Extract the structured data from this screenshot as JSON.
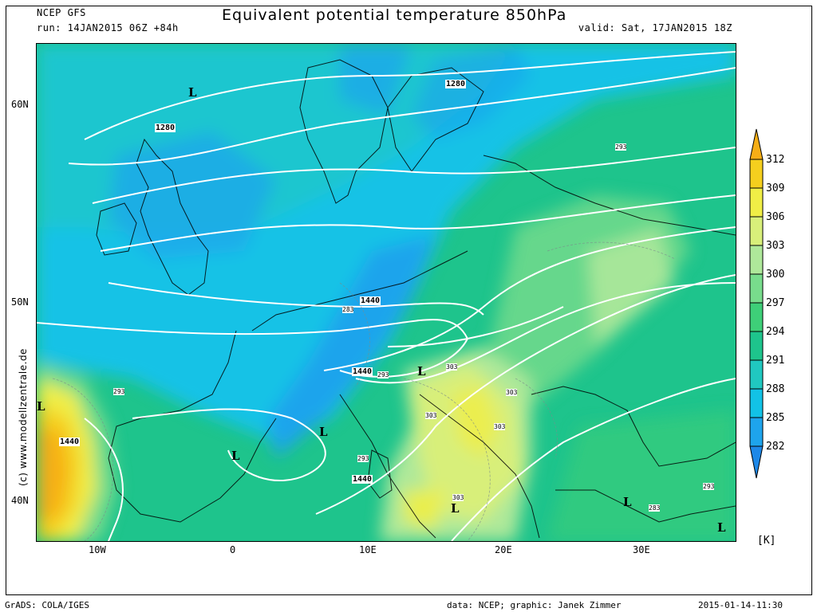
{
  "header": {
    "model": "NCEP GFS",
    "run": "run: 14JAN2015 06Z +84h",
    "title": "Equivalent potential temperature 850hPa",
    "valid": "valid: Sat, 17JAN2015 18Z"
  },
  "axes": {
    "lat_labels": [
      "60N",
      "50N",
      "40N"
    ],
    "lon_labels": [
      "10W",
      "0",
      "10E",
      "20E",
      "30E"
    ]
  },
  "colorbar": {
    "levels": [
      "312",
      "309",
      "306",
      "303",
      "300",
      "297",
      "294",
      "291",
      "288",
      "285",
      "282"
    ],
    "colors": [
      "#f6ae16",
      "#f5cf1e",
      "#f0ee46",
      "#d8ef7a",
      "#aee89a",
      "#78dc8c",
      "#3ecf78",
      "#1ec48c",
      "#20c8c0",
      "#12c2e6",
      "#1ea4ec"
    ],
    "unit": "[K]"
  },
  "map": {
    "height_contour_labels": [
      "1280",
      "1280",
      "1440",
      "1440",
      "1440",
      "1440"
    ],
    "theta_labels": [
      "293",
      "283",
      "293",
      "303",
      "303",
      "303",
      "303",
      "293",
      "303",
      "293",
      "283",
      "293"
    ],
    "low_markers": [
      "L",
      "L",
      "L",
      "L",
      "L",
      "L",
      "L",
      "L"
    ]
  },
  "watermark": "(c) www.modellzentrale.de",
  "footer": {
    "software": "GrADS: COLA/IGES",
    "credit": "data: NCEP; graphic: Janek Zimmer",
    "timestamp": "2015-01-14-11:30"
  }
}
